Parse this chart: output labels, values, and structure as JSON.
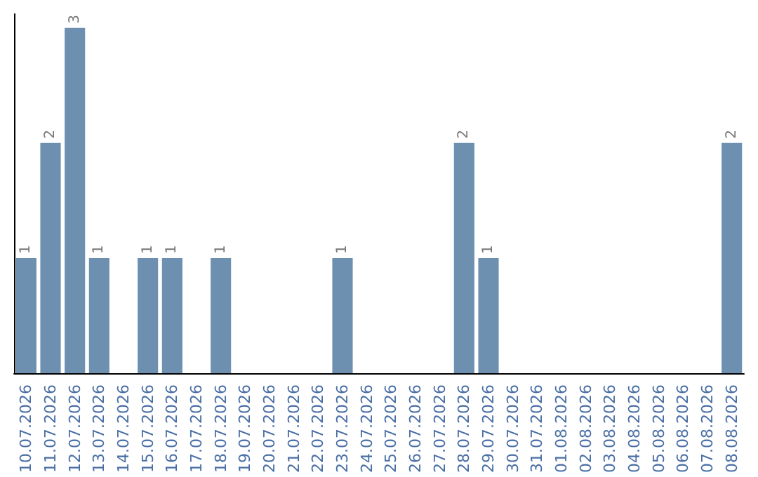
{
  "chart_data": {
    "type": "bar",
    "categories": [
      "10.07.2026",
      "11.07.2026",
      "12.07.2026",
      "13.07.2026",
      "14.07.2026",
      "15.07.2026",
      "16.07.2026",
      "17.07.2026",
      "18.07.2026",
      "19.07.2026",
      "20.07.2026",
      "21.07.2026",
      "22.07.2026",
      "23.07.2026",
      "24.07.2026",
      "25.07.2026",
      "26.07.2026",
      "27.07.2026",
      "28.07.2026",
      "29.07.2026",
      "30.07.2026",
      "31.07.2026",
      "01.08.2026",
      "02.08.2026",
      "03.08.2026",
      "04.08.2026",
      "05.08.2026",
      "06.08.2026",
      "07.08.2026",
      "08.08.2026"
    ],
    "values": [
      1,
      2,
      3,
      1,
      0,
      1,
      1,
      0,
      1,
      0,
      0,
      0,
      0,
      1,
      0,
      0,
      0,
      0,
      2,
      1,
      0,
      0,
      0,
      0,
      0,
      0,
      0,
      0,
      0,
      2
    ],
    "value_labels": [
      "1",
      "2",
      "3",
      "1",
      null,
      "1",
      "1",
      null,
      "1",
      null,
      null,
      null,
      null,
      "1",
      null,
      null,
      null,
      null,
      "2",
      "1",
      null,
      null,
      null,
      null,
      null,
      null,
      null,
      null,
      null,
      "2"
    ],
    "color": "#6d8fb0",
    "tick_labels": "x"
  }
}
